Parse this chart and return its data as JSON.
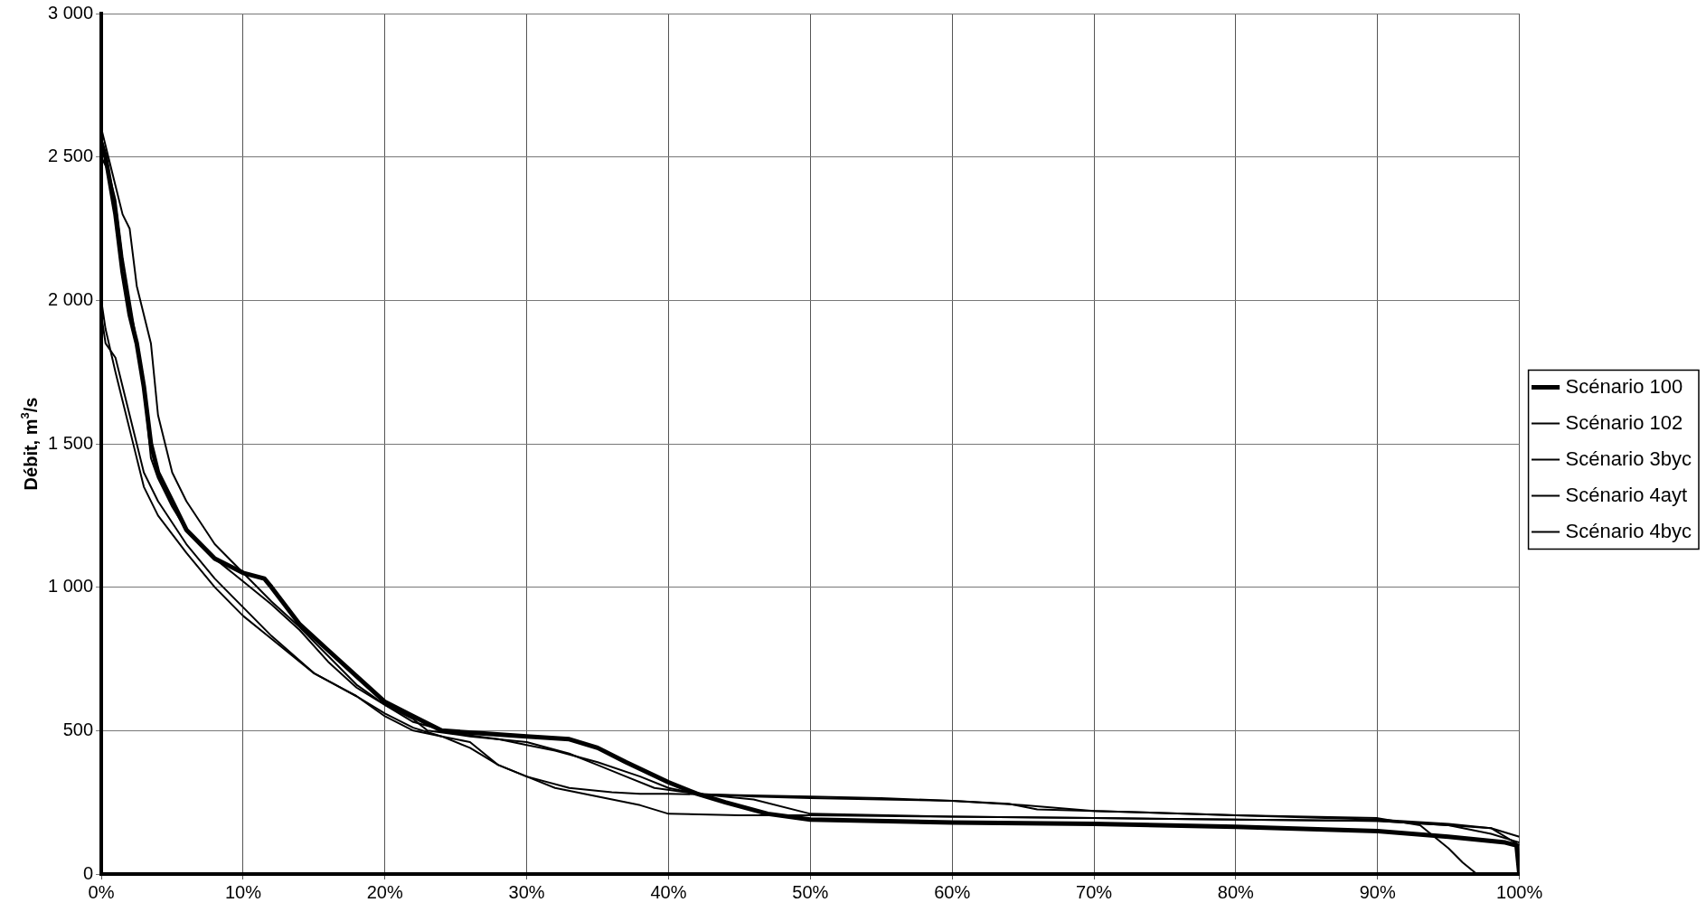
{
  "chart_data": {
    "type": "line",
    "ylabel": "Débit, m$^{3}$/s",
    "xlim": [
      0,
      100
    ],
    "xticks": [
      {
        "value": 0,
        "label": "0%"
      },
      {
        "value": 10,
        "label": "10%"
      },
      {
        "value": 20,
        "label": "20%"
      },
      {
        "value": 30,
        "label": "30%"
      },
      {
        "value": 40,
        "label": "40%"
      },
      {
        "value": 50,
        "label": "50%"
      },
      {
        "value": 60,
        "label": "60%"
      },
      {
        "value": 70,
        "label": "70%"
      },
      {
        "value": 80,
        "label": "80%"
      },
      {
        "value": 90,
        "label": "90%"
      },
      {
        "value": 100,
        "label": "100%"
      }
    ],
    "ylim": [
      0,
      3000
    ],
    "yticks": [
      {
        "value": 0,
        "label": "0"
      },
      {
        "value": 500,
        "label": "500"
      },
      {
        "value": 1000,
        "label": "1 000"
      },
      {
        "value": 1500,
        "label": "1 500"
      },
      {
        "value": 2000,
        "label": "2 000"
      },
      {
        "value": 2500,
        "label": "2 500"
      },
      {
        "value": 3000,
        "label": "3 000"
      }
    ],
    "grid": true,
    "legend": "right",
    "marker": "none",
    "line_style": "solid",
    "series": [
      {
        "name": "Scénario 100",
        "color": "#000000",
        "x": [
          0,
          0.3,
          1,
          1.5,
          2,
          2.5,
          3,
          3.5,
          4,
          5,
          6,
          8,
          10,
          11.5,
          12,
          14,
          16,
          18,
          20,
          22,
          24,
          27,
          30,
          33,
          35,
          37,
          40,
          42,
          44,
          47,
          50,
          60,
          70,
          80,
          90,
          95,
          99,
          99.8,
          100
        ],
        "values": [
          2550,
          2500,
          2300,
          2100,
          1950,
          1850,
          1700,
          1500,
          1400,
          1300,
          1200,
          1100,
          1050,
          1030,
          1000,
          870,
          780,
          690,
          600,
          550,
          500,
          490,
          480,
          470,
          440,
          390,
          320,
          280,
          250,
          210,
          190,
          180,
          175,
          165,
          150,
          130,
          110,
          100,
          0
        ]
      },
      {
        "name": "Scénario 102",
        "color": "#000000",
        "x": [
          0,
          0.5,
          1,
          1.5,
          2,
          2.5,
          3,
          3.5,
          4,
          4.5,
          5,
          6,
          8,
          10,
          12,
          14,
          16,
          18,
          20,
          22,
          25,
          28,
          30,
          32,
          35,
          38,
          40,
          42,
          46,
          50,
          55,
          60,
          65,
          70,
          80,
          90,
          95,
          98,
          100
        ],
        "values": [
          2600,
          2500,
          2400,
          2300,
          2250,
          2050,
          1950,
          1850,
          1600,
          1500,
          1400,
          1300,
          1150,
          1050,
          950,
          860,
          760,
          660,
          590,
          530,
          490,
          470,
          450,
          430,
          390,
          340,
          300,
          280,
          270,
          265,
          260,
          255,
          240,
          220,
          205,
          190,
          175,
          160,
          130
        ]
      },
      {
        "name": "Scénario 3byc",
        "color": "#000000",
        "x": [
          0,
          0.5,
          1,
          1.5,
          2,
          2.5,
          3,
          3.5,
          4,
          5,
          6,
          8,
          10,
          12,
          14,
          16,
          18,
          20,
          22,
          23,
          26,
          30,
          33,
          35,
          37,
          39,
          42,
          46,
          50,
          60,
          70,
          80,
          90,
          95,
          98,
          100
        ],
        "values": [
          2500,
          2450,
          2350,
          2150,
          2000,
          1850,
          1700,
          1450,
          1380,
          1280,
          1200,
          1100,
          1020,
          940,
          850,
          740,
          650,
          590,
          540,
          500,
          480,
          460,
          420,
          380,
          340,
          300,
          280,
          260,
          210,
          200,
          195,
          190,
          185,
          170,
          140,
          110
        ]
      },
      {
        "name": "Scénario 4ayt",
        "color": "#000000",
        "x": [
          0,
          0.3,
          1,
          1.5,
          2,
          2.5,
          3,
          4,
          6,
          8,
          10,
          12,
          15,
          18,
          20,
          22,
          24,
          26,
          28,
          30,
          33,
          36,
          38,
          40,
          45,
          50,
          55,
          60,
          64,
          66,
          70,
          80,
          90,
          93,
          94,
          95,
          96,
          97
        ],
        "values": [
          1950,
          1850,
          1800,
          1700,
          1600,
          1500,
          1400,
          1300,
          1150,
          1030,
          930,
          830,
          700,
          620,
          550,
          500,
          480,
          460,
          380,
          340,
          300,
          285,
          280,
          280,
          275,
          270,
          265,
          255,
          245,
          225,
          220,
          205,
          195,
          170,
          130,
          90,
          40,
          0
        ]
      },
      {
        "name": "Scénario 4byc",
        "color": "#000000",
        "x": [
          0,
          0.3,
          1,
          1.5,
          2,
          2.5,
          3,
          4,
          6,
          8,
          10,
          12,
          15,
          18,
          20,
          22,
          24,
          26,
          28,
          30,
          32,
          35,
          38,
          40,
          45,
          50,
          60,
          70,
          80,
          90,
          95,
          98,
          100
        ],
        "values": [
          2000,
          1900,
          1750,
          1650,
          1550,
          1450,
          1350,
          1250,
          1120,
          1000,
          900,
          820,
          700,
          620,
          560,
          510,
          480,
          440,
          380,
          340,
          300,
          270,
          240,
          210,
          205,
          205,
          200,
          195,
          190,
          185,
          170,
          160,
          100
        ]
      }
    ]
  }
}
